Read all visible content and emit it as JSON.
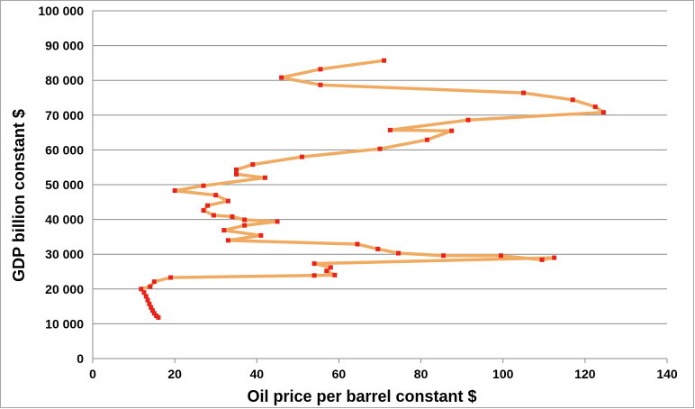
{
  "chart_data": {
    "type": "line",
    "xlabel": "Oil price per barrel constant $",
    "ylabel": "GDP billion constant $",
    "xlim": [
      0,
      140
    ],
    "ylim": [
      0,
      100000
    ],
    "x_ticks": [
      0,
      20,
      40,
      60,
      80,
      100,
      120,
      140
    ],
    "y_ticks": [
      0,
      10000,
      20000,
      30000,
      40000,
      50000,
      60000,
      70000,
      80000,
      90000,
      100000
    ],
    "y_tick_labels": [
      "0",
      "10 000",
      "20 000",
      "30 000",
      "40 000",
      "50 000",
      "60 000",
      "70 000",
      "80 000",
      "90 000",
      "100 000"
    ],
    "x_tick_labels": [
      "0",
      "20",
      "40",
      "60",
      "80",
      "100",
      "120",
      "140"
    ],
    "grid": "horizontal",
    "line_color": "#f0ab62",
    "marker_color": "#e8231a",
    "series": [
      {
        "points": [
          [
            16.0,
            11800
          ],
          [
            15.5,
            12300
          ],
          [
            15.0,
            13000
          ],
          [
            14.6,
            13800
          ],
          [
            14.2,
            14700
          ],
          [
            13.8,
            15700
          ],
          [
            13.4,
            16800
          ],
          [
            13.0,
            17900
          ],
          [
            12.5,
            19000
          ],
          [
            11.8,
            20000
          ],
          [
            14.0,
            20700
          ],
          [
            15.0,
            22100
          ],
          [
            19.0,
            23300
          ],
          [
            54.0,
            23900
          ],
          [
            59.0,
            24000
          ],
          [
            57.0,
            25200
          ],
          [
            58.0,
            26200
          ],
          [
            54.0,
            27300
          ],
          [
            112.5,
            29000
          ],
          [
            109.5,
            28400
          ],
          [
            99.5,
            29600
          ],
          [
            85.5,
            29600
          ],
          [
            74.5,
            30300
          ],
          [
            69.5,
            31500
          ],
          [
            64.5,
            32900
          ],
          [
            33.0,
            34000
          ],
          [
            41.0,
            35400
          ],
          [
            32.0,
            36900
          ],
          [
            37.0,
            38300
          ],
          [
            45.0,
            39400
          ],
          [
            37.0,
            39900
          ],
          [
            34.0,
            40800
          ],
          [
            29.5,
            41200
          ],
          [
            27.0,
            42600
          ],
          [
            28.0,
            44000
          ],
          [
            33.0,
            45300
          ],
          [
            30.0,
            47000
          ],
          [
            20.0,
            48300
          ],
          [
            27.0,
            49700
          ],
          [
            42.0,
            52000
          ],
          [
            35.0,
            53000
          ],
          [
            35.0,
            54300
          ],
          [
            39.0,
            55800
          ],
          [
            51.0,
            58000
          ],
          [
            70.0,
            60300
          ],
          [
            81.5,
            62900
          ],
          [
            87.5,
            65500
          ],
          [
            72.5,
            65700
          ],
          [
            91.5,
            68600
          ],
          [
            124.5,
            70800
          ],
          [
            122.5,
            72400
          ],
          [
            117.0,
            74400
          ],
          [
            105.0,
            76400
          ],
          [
            55.5,
            78700
          ],
          [
            46.0,
            80800
          ],
          [
            55.5,
            83200
          ],
          [
            71.0,
            85700
          ]
        ]
      }
    ]
  }
}
